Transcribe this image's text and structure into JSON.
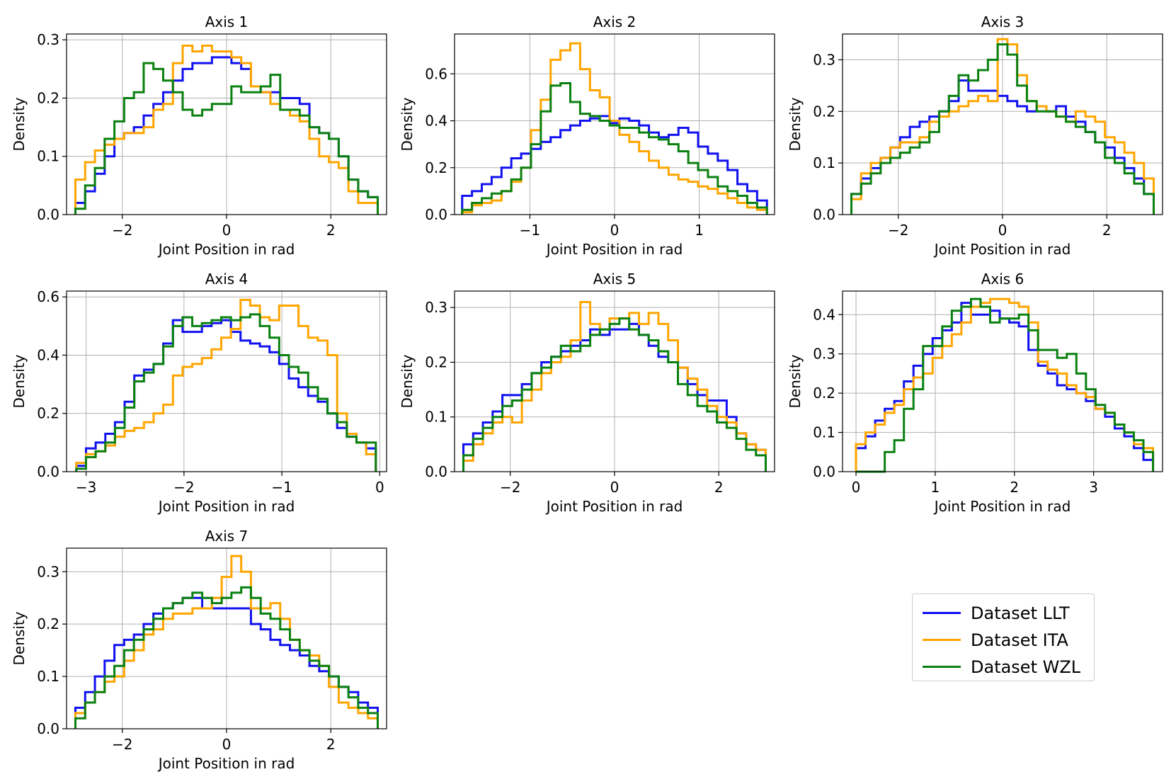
{
  "colors": {
    "LLT": "#1010f0",
    "ITA": "#ffa500",
    "WZL": "#0a8010"
  },
  "legend": {
    "items": [
      {
        "label": "Dataset LLT",
        "color": "#1010f0"
      },
      {
        "label": "Dataset ITA",
        "color": "#ffa500"
      },
      {
        "label": "Dataset WZL",
        "color": "#0a8010"
      }
    ]
  },
  "chart_data": [
    {
      "type": "histogram-step",
      "title": "Axis 1",
      "xlabel": "Joint Position in rad",
      "ylabel": "Density",
      "xlim": [
        -3.07,
        3.07
      ],
      "ylim": [
        0,
        0.31
      ],
      "xticks": [
        -2,
        0,
        2
      ],
      "xtick_labels": [
        "−2",
        "0",
        "2"
      ],
      "yticks": [
        0,
        0.1,
        0.2,
        0.3
      ],
      "ytick_labels": [
        "0.0",
        "0.1",
        "0.2",
        "0.3"
      ],
      "bins": [
        -2.9,
        2.9
      ],
      "series": [
        {
          "name": "Dataset LLT",
          "values": [
            0.02,
            0.04,
            0.07,
            0.1,
            0.13,
            0.14,
            0.15,
            0.17,
            0.19,
            0.21,
            0.23,
            0.25,
            0.26,
            0.26,
            0.27,
            0.27,
            0.26,
            0.25,
            0.22,
            0.21,
            0.21,
            0.2,
            0.2,
            0.19,
            0.15,
            0.14,
            0.13,
            0.1,
            0.06,
            0.04,
            0.03
          ]
        },
        {
          "name": "Dataset ITA",
          "values": [
            0.06,
            0.09,
            0.11,
            0.12,
            0.13,
            0.14,
            0.14,
            0.15,
            0.18,
            0.19,
            0.26,
            0.29,
            0.28,
            0.29,
            0.28,
            0.28,
            0.27,
            0.26,
            0.22,
            0.21,
            0.19,
            0.18,
            0.17,
            0.16,
            0.13,
            0.1,
            0.09,
            0.08,
            0.04,
            0.02,
            0.02
          ]
        },
        {
          "name": "Dataset WZL",
          "values": [
            0.01,
            0.05,
            0.08,
            0.13,
            0.16,
            0.2,
            0.21,
            0.26,
            0.25,
            0.23,
            0.21,
            0.18,
            0.17,
            0.18,
            0.19,
            0.19,
            0.22,
            0.21,
            0.21,
            0.22,
            0.24,
            0.18,
            0.18,
            0.17,
            0.15,
            0.14,
            0.13,
            0.1,
            0.06,
            0.04,
            0.03
          ]
        }
      ]
    },
    {
      "type": "histogram-step",
      "title": "Axis 2",
      "xlabel": "Joint Position in rad",
      "ylabel": "Density",
      "xlim": [
        -1.89,
        1.89
      ],
      "ylim": [
        0,
        0.77
      ],
      "xticks": [
        -1,
        0,
        1
      ],
      "xtick_labels": [
        "−1",
        "0",
        "1"
      ],
      "yticks": [
        0,
        0.2,
        0.4,
        0.6
      ],
      "ytick_labels": [
        "0.0",
        "0.2",
        "0.4",
        "0.6"
      ],
      "bins": [
        -1.8,
        1.8
      ],
      "series": [
        {
          "name": "Dataset LLT",
          "values": [
            0.08,
            0.1,
            0.13,
            0.16,
            0.2,
            0.24,
            0.26,
            0.28,
            0.31,
            0.33,
            0.36,
            0.38,
            0.4,
            0.41,
            0.42,
            0.39,
            0.41,
            0.4,
            0.38,
            0.35,
            0.33,
            0.34,
            0.37,
            0.35,
            0.29,
            0.26,
            0.23,
            0.19,
            0.13,
            0.1,
            0.06
          ]
        },
        {
          "name": "Dataset ITA",
          "values": [
            0.01,
            0.04,
            0.05,
            0.06,
            0.1,
            0.14,
            0.2,
            0.36,
            0.49,
            0.66,
            0.7,
            0.73,
            0.62,
            0.53,
            0.5,
            0.4,
            0.34,
            0.31,
            0.27,
            0.23,
            0.2,
            0.17,
            0.15,
            0.14,
            0.12,
            0.11,
            0.09,
            0.07,
            0.05,
            0.03,
            0.02
          ]
        },
        {
          "name": "Dataset WZL",
          "values": [
            0.02,
            0.05,
            0.07,
            0.09,
            0.1,
            0.15,
            0.2,
            0.3,
            0.44,
            0.55,
            0.56,
            0.48,
            0.43,
            0.42,
            0.4,
            0.38,
            0.37,
            0.37,
            0.35,
            0.33,
            0.32,
            0.3,
            0.27,
            0.22,
            0.19,
            0.16,
            0.12,
            0.1,
            0.08,
            0.05,
            0.03
          ]
        }
      ]
    },
    {
      "type": "histogram-step",
      "title": "Axis 3",
      "xlabel": "Joint Position in rad",
      "ylabel": "Density",
      "xlim": [
        -3.07,
        3.07
      ],
      "ylim": [
        0,
        0.35
      ],
      "xticks": [
        -2,
        0,
        2
      ],
      "xtick_labels": [
        "−2",
        "0",
        "2"
      ],
      "yticks": [
        0,
        0.1,
        0.2,
        0.3
      ],
      "ytick_labels": [
        "0.0",
        "0.1",
        "0.2",
        "0.3"
      ],
      "bins": [
        -2.9,
        2.9
      ],
      "series": [
        {
          "name": "Dataset LLT",
          "values": [
            0.04,
            0.07,
            0.09,
            0.11,
            0.13,
            0.15,
            0.17,
            0.18,
            0.19,
            0.2,
            0.22,
            0.26,
            0.24,
            0.24,
            0.24,
            0.23,
            0.22,
            0.21,
            0.2,
            0.21,
            0.2,
            0.21,
            0.19,
            0.18,
            0.16,
            0.14,
            0.13,
            0.11,
            0.09,
            0.07,
            0.04
          ]
        },
        {
          "name": "Dataset ITA",
          "values": [
            0.03,
            0.08,
            0.1,
            0.11,
            0.13,
            0.14,
            0.14,
            0.15,
            0.18,
            0.19,
            0.2,
            0.21,
            0.22,
            0.23,
            0.22,
            0.34,
            0.33,
            0.27,
            0.22,
            0.21,
            0.2,
            0.19,
            0.18,
            0.2,
            0.19,
            0.18,
            0.15,
            0.14,
            0.12,
            0.1,
            0.07
          ]
        },
        {
          "name": "Dataset WZL",
          "values": [
            0.04,
            0.06,
            0.08,
            0.1,
            0.11,
            0.12,
            0.13,
            0.14,
            0.16,
            0.2,
            0.23,
            0.27,
            0.26,
            0.28,
            0.3,
            0.33,
            0.31,
            0.25,
            0.22,
            0.2,
            0.2,
            0.19,
            0.18,
            0.17,
            0.16,
            0.14,
            0.11,
            0.1,
            0.08,
            0.06,
            0.04
          ]
        }
      ]
    },
    {
      "type": "histogram-step",
      "title": "Axis 4",
      "xlabel": "Joint Position in rad",
      "ylabel": "Density",
      "xlim": [
        -3.2,
        0.07
      ],
      "ylim": [
        0,
        0.62
      ],
      "xticks": [
        -3,
        -2,
        -1,
        0
      ],
      "xtick_labels": [
        "−3",
        "−2",
        "−1",
        "0"
      ],
      "yticks": [
        0,
        0.2,
        0.4,
        0.6
      ],
      "ytick_labels": [
        "0.0",
        "0.2",
        "0.4",
        "0.6"
      ],
      "bins": [
        -3.1,
        -0.04
      ],
      "series": [
        {
          "name": "Dataset LLT",
          "values": [
            0.02,
            0.08,
            0.1,
            0.13,
            0.17,
            0.24,
            0.33,
            0.35,
            0.37,
            0.44,
            0.52,
            0.48,
            0.48,
            0.5,
            0.51,
            0.52,
            0.48,
            0.45,
            0.44,
            0.43,
            0.41,
            0.37,
            0.32,
            0.29,
            0.26,
            0.24,
            0.2,
            0.15,
            0.12,
            0.1,
            0.08
          ]
        },
        {
          "name": "Dataset ITA",
          "values": [
            0.03,
            0.06,
            0.07,
            0.09,
            0.12,
            0.14,
            0.15,
            0.17,
            0.2,
            0.23,
            0.33,
            0.36,
            0.37,
            0.39,
            0.42,
            0.46,
            0.49,
            0.59,
            0.57,
            0.53,
            0.52,
            0.57,
            0.57,
            0.5,
            0.46,
            0.45,
            0.4,
            0.2,
            0.13,
            0.1,
            0.06
          ]
        },
        {
          "name": "Dataset WZL",
          "values": [
            0.01,
            0.05,
            0.07,
            0.1,
            0.15,
            0.22,
            0.31,
            0.34,
            0.37,
            0.43,
            0.5,
            0.53,
            0.5,
            0.51,
            0.52,
            0.53,
            0.52,
            0.53,
            0.54,
            0.5,
            0.46,
            0.4,
            0.36,
            0.34,
            0.29,
            0.25,
            0.2,
            0.17,
            0.12,
            0.1,
            0.1
          ]
        }
      ]
    },
    {
      "type": "histogram-step",
      "title": "Axis 5",
      "xlabel": "Joint Position in rad",
      "ylabel": "Density",
      "xlim": [
        -3.07,
        3.07
      ],
      "ylim": [
        0,
        0.33
      ],
      "xticks": [
        -2,
        0,
        2
      ],
      "xtick_labels": [
        "−2",
        "0",
        "2"
      ],
      "yticks": [
        0,
        0.1,
        0.2,
        0.3
      ],
      "ytick_labels": [
        "0.0",
        "0.1",
        "0.2",
        "0.3"
      ],
      "bins": [
        -2.9,
        2.9
      ],
      "series": [
        {
          "name": "Dataset LLT",
          "values": [
            0.05,
            0.07,
            0.09,
            0.11,
            0.14,
            0.14,
            0.16,
            0.18,
            0.2,
            0.21,
            0.22,
            0.23,
            0.24,
            0.26,
            0.25,
            0.26,
            0.26,
            0.27,
            0.25,
            0.23,
            0.21,
            0.2,
            0.19,
            0.16,
            0.14,
            0.13,
            0.13,
            0.1,
            0.07,
            0.05,
            0.04
          ]
        },
        {
          "name": "Dataset ITA",
          "values": [
            0.02,
            0.05,
            0.07,
            0.09,
            0.1,
            0.09,
            0.13,
            0.15,
            0.18,
            0.2,
            0.21,
            0.24,
            0.31,
            0.27,
            0.26,
            0.28,
            0.28,
            0.29,
            0.27,
            0.29,
            0.27,
            0.24,
            0.19,
            0.17,
            0.15,
            0.12,
            0.1,
            0.09,
            0.07,
            0.05,
            0.04
          ]
        },
        {
          "name": "Dataset WZL",
          "values": [
            0.03,
            0.06,
            0.08,
            0.1,
            0.12,
            0.13,
            0.15,
            0.18,
            0.19,
            0.21,
            0.23,
            0.22,
            0.23,
            0.25,
            0.26,
            0.27,
            0.28,
            0.26,
            0.25,
            0.24,
            0.22,
            0.2,
            0.16,
            0.14,
            0.12,
            0.11,
            0.09,
            0.08,
            0.06,
            0.04,
            0.03
          ]
        }
      ]
    },
    {
      "type": "histogram-step",
      "title": "Axis 6",
      "xlabel": "Joint Position in rad",
      "ylabel": "Density",
      "xlim": [
        -0.17,
        3.87
      ],
      "ylim": [
        0,
        0.46
      ],
      "xticks": [
        0,
        1,
        2,
        3
      ],
      "xtick_labels": [
        "0",
        "1",
        "2",
        "3"
      ],
      "yticks": [
        0,
        0.1,
        0.2,
        0.3,
        0.4
      ],
      "ytick_labels": [
        "0.0",
        "0.1",
        "0.2",
        "0.3",
        "0.4"
      ],
      "bins": [
        0,
        3.75
      ],
      "series": [
        {
          "name": "Dataset LLT",
          "values": [
            0.06,
            0.09,
            0.13,
            0.16,
            0.18,
            0.23,
            0.27,
            0.3,
            0.34,
            0.36,
            0.38,
            0.43,
            0.4,
            0.4,
            0.41,
            0.39,
            0.38,
            0.37,
            0.31,
            0.27,
            0.25,
            0.22,
            0.21,
            0.2,
            0.18,
            0.16,
            0.14,
            0.11,
            0.09,
            0.06,
            0.03
          ]
        },
        {
          "name": "Dataset ITA",
          "values": [
            0.07,
            0.1,
            0.12,
            0.15,
            0.17,
            0.21,
            0.24,
            0.25,
            0.29,
            0.32,
            0.35,
            0.38,
            0.42,
            0.43,
            0.44,
            0.44,
            0.43,
            0.42,
            0.38,
            0.28,
            0.26,
            0.25,
            0.22,
            0.2,
            0.19,
            0.16,
            0.15,
            0.12,
            0.1,
            0.07,
            0.06
          ]
        },
        {
          "name": "Dataset WZL",
          "values": [
            0.0,
            0.0,
            0.0,
            0.05,
            0.08,
            0.16,
            0.21,
            0.32,
            0.32,
            0.37,
            0.41,
            0.42,
            0.44,
            0.42,
            0.38,
            0.39,
            0.39,
            0.4,
            0.36,
            0.31,
            0.31,
            0.29,
            0.3,
            0.25,
            0.21,
            0.17,
            0.15,
            0.12,
            0.1,
            0.08,
            0.05
          ]
        }
      ]
    },
    {
      "type": "histogram-step",
      "title": "Axis 7",
      "xlabel": "Joint Position in rad",
      "ylabel": "Density",
      "xlim": [
        -3.07,
        3.07
      ],
      "ylim": [
        0,
        0.345
      ],
      "xticks": [
        -2,
        0,
        2
      ],
      "xtick_labels": [
        "−2",
        "0",
        "2"
      ],
      "yticks": [
        0,
        0.1,
        0.2,
        0.3
      ],
      "ytick_labels": [
        "0.0",
        "0.1",
        "0.2",
        "0.3"
      ],
      "bins": [
        -2.9,
        2.9
      ],
      "series": [
        {
          "name": "Dataset LLT",
          "values": [
            0.04,
            0.07,
            0.1,
            0.13,
            0.16,
            0.17,
            0.18,
            0.2,
            0.22,
            0.23,
            0.24,
            0.25,
            0.25,
            0.23,
            0.23,
            0.23,
            0.23,
            0.23,
            0.2,
            0.19,
            0.17,
            0.16,
            0.15,
            0.14,
            0.12,
            0.11,
            0.1,
            0.08,
            0.07,
            0.05,
            0.04
          ]
        },
        {
          "name": "Dataset ITA",
          "values": [
            0.03,
            0.05,
            0.07,
            0.09,
            0.1,
            0.13,
            0.15,
            0.18,
            0.19,
            0.21,
            0.22,
            0.22,
            0.23,
            0.23,
            0.25,
            0.29,
            0.33,
            0.3,
            0.23,
            0.23,
            0.24,
            0.21,
            0.17,
            0.15,
            0.14,
            0.12,
            0.08,
            0.05,
            0.04,
            0.03,
            0.02
          ]
        },
        {
          "name": "Dataset WZL",
          "values": [
            0.02,
            0.05,
            0.07,
            0.1,
            0.12,
            0.15,
            0.17,
            0.19,
            0.21,
            0.23,
            0.24,
            0.25,
            0.26,
            0.25,
            0.24,
            0.25,
            0.26,
            0.27,
            0.25,
            0.22,
            0.21,
            0.19,
            0.17,
            0.15,
            0.13,
            0.12,
            0.1,
            0.08,
            0.06,
            0.04,
            0.03
          ]
        }
      ]
    }
  ]
}
